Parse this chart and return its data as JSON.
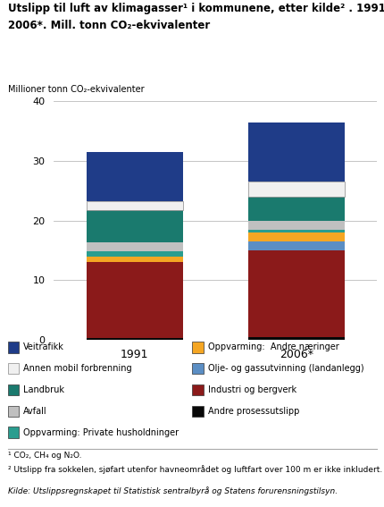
{
  "title_line1": "Utslipp til luft av klimagasser¹ i kommunene, etter kilde² . 1991 og",
  "title_line2": "2006*. Mill. tonn CO₂-ekvivalenter",
  "ylabel": "Millioner tonn CO₂-ekvivalenter",
  "years": [
    "1991",
    "2006*"
  ],
  "categories": [
    "Andre prosessutslipp",
    "Industri og bergverk",
    "Olje- og gassutvinning (landanlegg)",
    "Oppvarming:  Andre næringer",
    "Oppvarming: Private husholdninger",
    "Avfall",
    "Landbruk",
    "Annen mobil forbrenning",
    "Veitrafikk"
  ],
  "values_1991": [
    0.3,
    12.7,
    0.0,
    1.0,
    0.9,
    1.5,
    5.3,
    1.5,
    8.3
  ],
  "values_2006": [
    0.5,
    14.5,
    1.5,
    1.5,
    0.5,
    1.5,
    4.0,
    2.5,
    10.0
  ],
  "colors": [
    "#080808",
    "#8b1a1a",
    "#5b8ec4",
    "#f5a623",
    "#2a9d8f",
    "#c0c0c0",
    "#1a7a6e",
    "#f0f0f0",
    "#1f3c88"
  ],
  "ylim": [
    0,
    40
  ],
  "yticks": [
    0,
    10,
    20,
    30,
    40
  ],
  "left_legend": [
    [
      8,
      "Veitrafikk"
    ],
    [
      7,
      "Annen mobil forbrenning"
    ],
    [
      6,
      "Landbruk"
    ],
    [
      5,
      "Avfall"
    ],
    [
      4,
      "Oppvarming: Private husholdninger"
    ]
  ],
  "right_legend": [
    [
      3,
      "Oppvarming:  Andre næringer"
    ],
    [
      2,
      "Olje- og gassutvinning (landanlegg)"
    ],
    [
      1,
      "Industri og bergverk"
    ],
    [
      0,
      "Andre prosessutslipp"
    ]
  ],
  "footnote1": "¹ CO₂, CH₄ og N₂O.",
  "footnote2": "² Utslipp fra sokkelen, sjøfart utenfor havneområdet og luftfart over 100 m er ikke inkludert.",
  "footnote3": "Kilde: Utslippsregnskapet til Statistisk sentralbyrå og Statens forurensningstilsyn.",
  "background_color": "#ffffff"
}
